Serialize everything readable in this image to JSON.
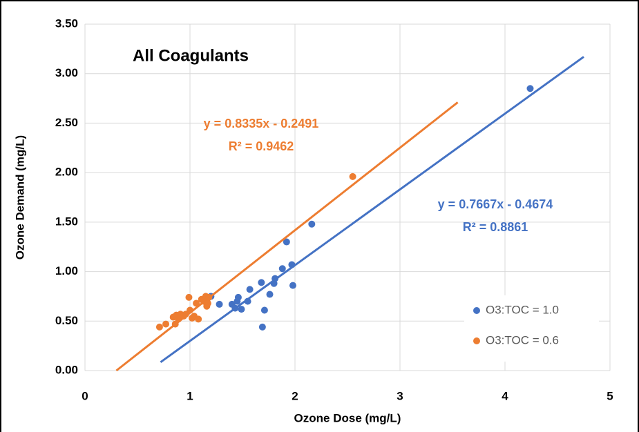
{
  "chart_data": {
    "type": "scatter",
    "title": "All Coagulants",
    "x_label": "Ozone Dose (mg/L)",
    "y_label": "Ozone Demand (mg/L)",
    "xlim": [
      0,
      5
    ],
    "xticks": [
      0,
      1,
      2,
      3,
      4,
      5
    ],
    "ylim": [
      0,
      3.5
    ],
    "yticks": [
      {
        "value": 0,
        "label": "0.00"
      },
      {
        "value": 0.5,
        "label": "0.50"
      },
      {
        "value": 1,
        "label": "1.00"
      },
      {
        "value": 1.5,
        "label": "1.50"
      },
      {
        "value": 2,
        "label": "2.00"
      },
      {
        "value": 2.5,
        "label": "2.50"
      },
      {
        "value": 3,
        "label": "3.00"
      },
      {
        "value": 3.5,
        "label": "3.50"
      }
    ],
    "grid": true,
    "legend": "lower right",
    "series": [
      {
        "name": "O3:TOC = 1.0",
        "color": "#4472c4",
        "x": [
          4.24,
          2.16,
          1.92,
          1.97,
          1.88,
          1.98,
          1.81,
          1.8,
          1.76,
          1.68,
          1.71,
          1.69,
          1.57,
          1.55,
          1.49,
          1.46,
          1.45,
          1.43,
          1.4,
          1.28,
          1.2
        ],
        "values": [
          2.85,
          1.48,
          1.3,
          1.07,
          1.03,
          0.86,
          0.93,
          0.88,
          0.77,
          0.89,
          0.61,
          0.44,
          0.82,
          0.7,
          0.62,
          0.74,
          0.7,
          0.63,
          0.67,
          0.67,
          0.75
        ],
        "trendline": {
          "x": [
            0.72,
            4.75
          ],
          "y": [
            0.085,
            3.17
          ]
        },
        "equation": "y = 0.7667x - 0.4674",
        "r2": "R² = 0.8861"
      },
      {
        "name": "O3:TOC = 0.6",
        "color": "#ed7d31",
        "x": [
          0.71,
          0.77,
          0.84,
          0.86,
          0.87,
          0.89,
          0.91,
          0.94,
          0.96,
          0.99,
          1.0,
          1.02,
          1.04,
          1.06,
          1.08,
          1.11,
          1.13,
          1.15,
          1.16,
          1.17,
          1.18,
          2.55
        ],
        "values": [
          0.44,
          0.47,
          0.54,
          0.47,
          0.56,
          0.52,
          0.57,
          0.55,
          0.57,
          0.74,
          0.61,
          0.53,
          0.55,
          0.68,
          0.52,
          0.72,
          0.7,
          0.75,
          0.65,
          0.68,
          0.74,
          1.96
        ],
        "trendline": {
          "x": [
            0.299,
            3.55
          ],
          "y": [
            0,
            2.71
          ]
        },
        "equation": "y = 0.8335x - 0.2491",
        "r2": "R² = 0.9462"
      }
    ]
  }
}
